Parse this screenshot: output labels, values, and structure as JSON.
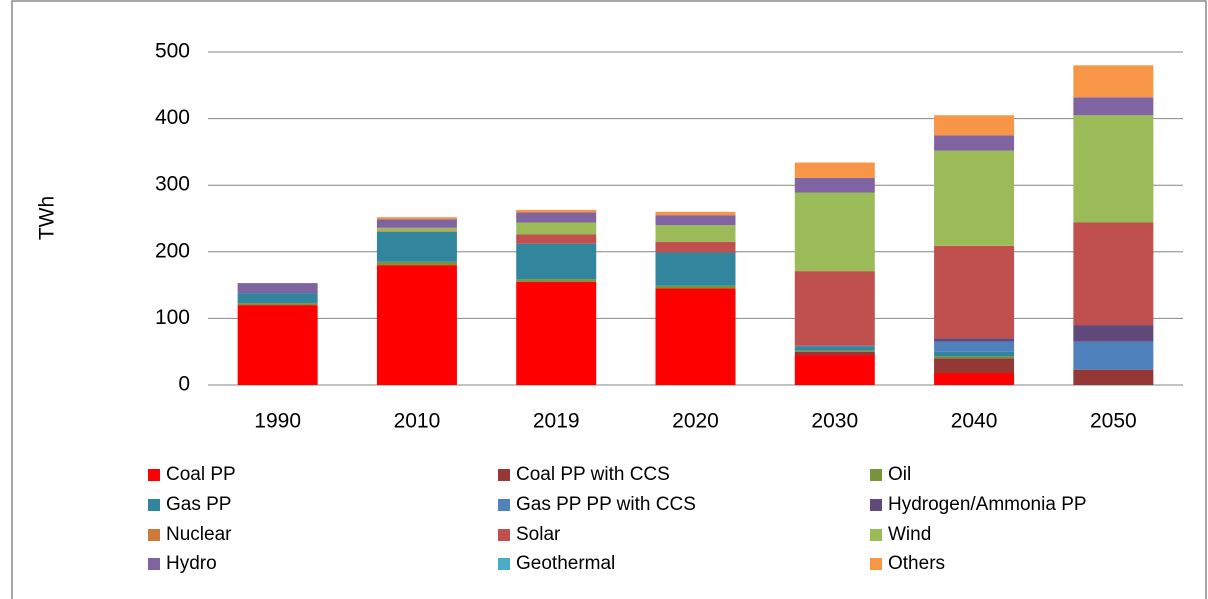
{
  "chart_data": {
    "type": "bar",
    "stacked": true,
    "y_label": "TWh",
    "categories": [
      "1990",
      "2010",
      "2019",
      "2020",
      "2030",
      "2040",
      "2050"
    ],
    "ylim": [
      0,
      500
    ],
    "yticks": [
      0,
      100,
      200,
      300,
      400,
      500
    ],
    "grid": true,
    "series": [
      {
        "name": "Coal PP",
        "color": "#ff0000",
        "values": [
          120,
          180,
          155,
          145,
          45,
          18,
          0
        ]
      },
      {
        "name": "Coal PP with CCS",
        "color": "#953735",
        "values": [
          0,
          0,
          0,
          0,
          5,
          22,
          23
        ]
      },
      {
        "name": "Oil",
        "color": "#77933c",
        "values": [
          3,
          5,
          4,
          4,
          2,
          3,
          0
        ]
      },
      {
        "name": "Gas PP",
        "color": "#31859c",
        "values": [
          15,
          45,
          53,
          50,
          5,
          7,
          0
        ]
      },
      {
        "name": "Gas PP PP with CCS",
        "color": "#4f81bd",
        "values": [
          0,
          0,
          0,
          0,
          2,
          15,
          42
        ]
      },
      {
        "name": "Hydrogen/Ammonia PP",
        "color": "#604a7b",
        "values": [
          0,
          0,
          0,
          0,
          0,
          5,
          25
        ]
      },
      {
        "name": "Nuclear",
        "color": "#d07a3a",
        "values": [
          0,
          0,
          0,
          0,
          0,
          0,
          0
        ]
      },
      {
        "name": "Solar",
        "color": "#c0504d",
        "values": [
          0,
          1,
          14,
          16,
          112,
          139,
          154
        ]
      },
      {
        "name": "Wind",
        "color": "#9bbb59",
        "values": [
          0,
          5,
          18,
          25,
          118,
          143,
          161
        ]
      },
      {
        "name": "Hydro",
        "color": "#8064a2",
        "values": [
          15,
          13,
          15,
          15,
          22,
          23,
          27
        ]
      },
      {
        "name": "Geothermal",
        "color": "#4bacc6",
        "values": [
          0,
          0,
          0,
          0,
          0,
          0,
          0
        ]
      },
      {
        "name": "Others",
        "color": "#f79646",
        "values": [
          0,
          3,
          4,
          5,
          23,
          30,
          48
        ]
      }
    ]
  }
}
